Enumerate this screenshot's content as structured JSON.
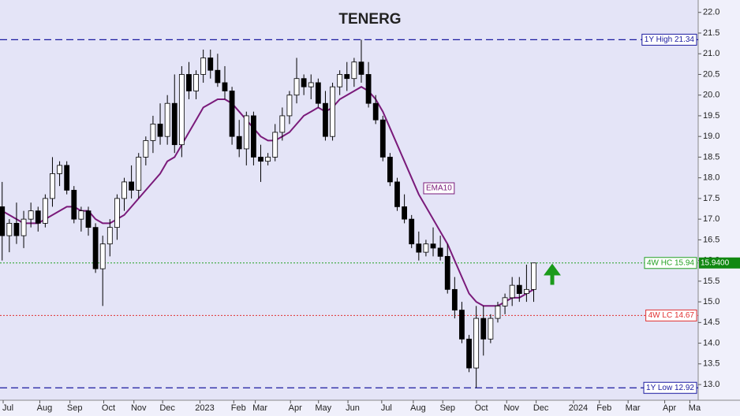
{
  "chart_data": {
    "type": "candlestick",
    "title": "TENERG",
    "title_color": "#138a13",
    "xlim": [
      -0.3,
      96.9
    ],
    "ylim": [
      12.62,
      22.3
    ],
    "xticks": [
      {
        "value": 0.8,
        "label": "Jul"
      },
      {
        "value": 5.9,
        "label": "Aug"
      },
      {
        "value": 10.1,
        "label": "Sep"
      },
      {
        "value": 14.8,
        "label": "Oct"
      },
      {
        "value": 19,
        "label": "Nov"
      },
      {
        "value": 23,
        "label": "Dec"
      },
      {
        "value": 28.2,
        "label": "2023"
      },
      {
        "value": 32.9,
        "label": "Feb"
      },
      {
        "value": 35.9,
        "label": "Mar"
      },
      {
        "value": 40.8,
        "label": "Apr"
      },
      {
        "value": 44.7,
        "label": "May"
      },
      {
        "value": 48.8,
        "label": "Jun"
      },
      {
        "value": 53.5,
        "label": "Jul"
      },
      {
        "value": 57.9,
        "label": "Aug"
      },
      {
        "value": 62,
        "label": "Sep"
      },
      {
        "value": 66.7,
        "label": "Oct"
      },
      {
        "value": 70.9,
        "label": "Nov"
      },
      {
        "value": 75,
        "label": "Dec"
      },
      {
        "value": 80.2,
        "label": "2024"
      },
      {
        "value": 83.8,
        "label": "Feb"
      },
      {
        "value": 87.8,
        "label": "Mar"
      },
      {
        "value": 92.9,
        "label": "Apr"
      },
      {
        "value": 96.4,
        "label": "Ma"
      }
    ],
    "yticks": [
      {
        "value": 13,
        "label": "13.0"
      },
      {
        "value": 13.5,
        "label": "13.5"
      },
      {
        "value": 14,
        "label": "14.0"
      },
      {
        "value": 14.5,
        "label": "14.5"
      },
      {
        "value": 15,
        "label": "15.0"
      },
      {
        "value": 15.5,
        "label": "15.5"
      },
      {
        "value": 16,
        "label": "16.0"
      },
      {
        "value": 16.5,
        "label": "16.5"
      },
      {
        "value": 17,
        "label": "17.0"
      },
      {
        "value": 17.5,
        "label": "17.5"
      },
      {
        "value": 18,
        "label": "18.0"
      },
      {
        "value": 18.5,
        "label": "18.5"
      },
      {
        "value": 19,
        "label": "19.0"
      },
      {
        "value": 19.5,
        "label": "19.5"
      },
      {
        "value": 20,
        "label": "20.0"
      },
      {
        "value": 20.5,
        "label": "20.5"
      },
      {
        "value": 21,
        "label": "21.0"
      },
      {
        "value": 21.5,
        "label": "21.5"
      },
      {
        "value": 22,
        "label": "22.0"
      }
    ],
    "x": [
      0,
      1,
      2,
      3,
      4,
      5,
      6,
      7,
      8,
      9,
      10,
      11,
      12,
      13,
      14,
      15,
      16,
      17,
      18,
      19,
      20,
      21,
      22,
      23,
      24,
      25,
      26,
      27,
      28,
      29,
      30,
      31,
      32,
      33,
      34,
      35,
      36,
      37,
      38,
      39,
      40,
      41,
      42,
      43,
      44,
      45,
      46,
      47,
      48,
      49,
      50,
      51,
      52,
      53,
      54,
      55,
      56,
      57,
      58,
      59,
      60,
      61,
      62,
      63,
      64,
      65,
      66,
      67,
      68,
      69,
      70,
      71,
      72,
      73,
      74
    ],
    "open": [
      17.3,
      16.6,
      16.9,
      16.6,
      17.0,
      17.2,
      16.9,
      17.5,
      18.1,
      18.3,
      17.7,
      17.0,
      17.2,
      16.8,
      15.8,
      16.4,
      16.8,
      17.5,
      17.9,
      17.7,
      18.5,
      18.9,
      19.3,
      19.0,
      19.8,
      18.8,
      20.5,
      20.1,
      20.5,
      20.9,
      20.6,
      20.3,
      20.1,
      19.0,
      18.7,
      19.5,
      18.5,
      18.4,
      18.5,
      19.1,
      19.5,
      20.0,
      20.4,
      20.2,
      20.3,
      19.8,
      19.0,
      20.2,
      20.5,
      20.4,
      20.8,
      20.5,
      19.8,
      19.4,
      18.5,
      17.9,
      17.3,
      17.0,
      16.4,
      16.2,
      16.4,
      16.3,
      16.1,
      15.3,
      14.8,
      14.1,
      13.4,
      14.6,
      14.1,
      14.6,
      14.9,
      15.1,
      15.4,
      15.2,
      15.3
    ],
    "high": [
      17.9,
      17.0,
      17.4,
      17.2,
      17.4,
      17.3,
      17.6,
      18.5,
      18.4,
      18.4,
      17.8,
      17.3,
      17.3,
      16.9,
      16.6,
      17.0,
      17.6,
      18.0,
      18.3,
      18.6,
      19.0,
      19.5,
      19.8,
      20.0,
      20.5,
      20.7,
      20.8,
      20.6,
      21.1,
      21.1,
      21.0,
      20.7,
      20.2,
      19.4,
      19.6,
      19.6,
      18.8,
      18.6,
      19.3,
      19.7,
      20.1,
      20.9,
      20.5,
      20.5,
      20.4,
      20.1,
      20.3,
      20.6,
      20.8,
      20.9,
      21.34,
      20.8,
      20.0,
      19.5,
      18.6,
      18.0,
      17.6,
      17.1,
      16.7,
      16.5,
      16.8,
      16.6,
      16.4,
      15.6,
      15.0,
      14.2,
      14.9,
      14.9,
      14.7,
      15.0,
      15.2,
      15.6,
      15.6,
      15.9,
      15.94
    ],
    "low": [
      16.0,
      16.2,
      16.4,
      16.3,
      16.8,
      16.7,
      16.8,
      17.3,
      17.8,
      17.6,
      16.9,
      16.7,
      16.6,
      15.7,
      14.9,
      16.1,
      16.5,
      17.2,
      17.5,
      17.5,
      18.3,
      18.6,
      18.8,
      18.8,
      18.6,
      18.5,
      19.9,
      19.9,
      20.3,
      20.4,
      20.2,
      19.9,
      18.8,
      18.5,
      18.3,
      18.3,
      17.9,
      18.3,
      18.4,
      18.9,
      19.3,
      19.8,
      20.0,
      19.9,
      19.7,
      18.9,
      18.9,
      20.0,
      20.1,
      20.2,
      20.3,
      19.7,
      19.3,
      18.4,
      17.8,
      17.2,
      16.9,
      16.3,
      16.0,
      16.1,
      16.1,
      16.0,
      15.2,
      14.6,
      14.0,
      13.3,
      12.92,
      13.7,
      14.0,
      14.5,
      14.7,
      14.9,
      15.0,
      15.0,
      15.0
    ],
    "close": [
      16.6,
      16.9,
      16.6,
      17.0,
      17.2,
      16.9,
      17.5,
      18.1,
      18.3,
      17.7,
      17.0,
      17.2,
      16.8,
      15.8,
      16.4,
      16.8,
      17.5,
      17.9,
      17.7,
      18.5,
      18.9,
      19.3,
      19.0,
      19.8,
      18.8,
      20.5,
      20.1,
      20.5,
      20.9,
      20.6,
      20.3,
      20.1,
      19.0,
      18.7,
      19.5,
      18.5,
      18.4,
      18.5,
      19.1,
      19.5,
      20.0,
      20.4,
      20.2,
      20.3,
      19.8,
      19.0,
      20.2,
      20.5,
      20.4,
      20.8,
      20.5,
      19.8,
      19.4,
      18.5,
      17.9,
      17.3,
      17.0,
      16.4,
      16.2,
      16.4,
      16.3,
      16.1,
      15.3,
      14.8,
      14.1,
      13.4,
      14.6,
      14.1,
      14.6,
      14.9,
      15.1,
      15.4,
      15.2,
      15.3,
      15.94
    ],
    "ema": {
      "name": "EMA10",
      "color": "#7a1a7a",
      "values": [
        17.2,
        17.1,
        17.0,
        16.9,
        16.9,
        16.9,
        17.0,
        17.1,
        17.2,
        17.3,
        17.3,
        17.2,
        17.2,
        17.0,
        16.9,
        16.9,
        17.0,
        17.1,
        17.3,
        17.5,
        17.7,
        17.9,
        18.1,
        18.4,
        18.5,
        18.8,
        19.1,
        19.4,
        19.7,
        19.8,
        19.9,
        19.9,
        19.8,
        19.6,
        19.4,
        19.2,
        19.0,
        18.9,
        18.9,
        19.0,
        19.1,
        19.3,
        19.5,
        19.6,
        19.7,
        19.6,
        19.7,
        19.9,
        20.0,
        20.1,
        20.2,
        20.1,
        19.9,
        19.6,
        19.2,
        18.8,
        18.4,
        18.0,
        17.6,
        17.3,
        17.0,
        16.7,
        16.4,
        16.0,
        15.6,
        15.2,
        15.0,
        14.9,
        14.9,
        14.9,
        15.0,
        15.1,
        15.1,
        15.2,
        15.3
      ]
    },
    "hlines": [
      {
        "value": 21.34,
        "label": "1Y High 21.34",
        "color": "#1a1aa0",
        "style": "dashed"
      },
      {
        "value": 15.94,
        "label": "4W HC 15.94",
        "color": "#22a022",
        "style": "dotted"
      },
      {
        "value": 14.67,
        "label": "4W LC 14.67",
        "color": "#e03030",
        "style": "dotted"
      },
      {
        "value": 12.92,
        "label": "1Y Low 12.92",
        "color": "#1a1aa0",
        "style": "dashed"
      }
    ],
    "last_price": {
      "value": 15.94,
      "label": "15.9400",
      "color": "#118811"
    }
  }
}
